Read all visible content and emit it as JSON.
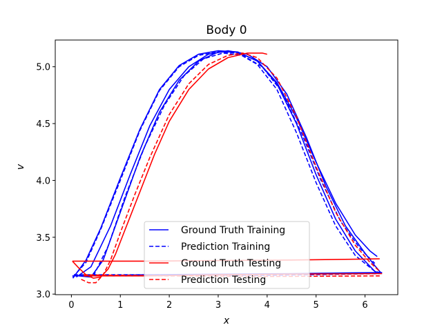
{
  "chart_data": {
    "type": "line",
    "title": "Body 0",
    "xlabel": "x",
    "ylabel": "v",
    "xlim": [
      -0.33,
      6.67
    ],
    "ylim": [
      2.995,
      5.235
    ],
    "xticks": [
      0,
      1,
      2,
      3,
      4,
      5,
      6
    ],
    "yticks": [
      3.0,
      3.5,
      4.0,
      4.5,
      5.0
    ],
    "xtick_labels": [
      "0",
      "1",
      "2",
      "3",
      "4",
      "5",
      "6"
    ],
    "ytick_labels": [
      "3.0",
      "3.5",
      "4.0",
      "4.5",
      "5.0"
    ],
    "grid": false,
    "legend_position": "lower-center",
    "series": [
      {
        "name": "Ground Truth Training",
        "color": "#0000ff",
        "dash": "solid",
        "segments": [
          [
            [
              0.03,
              3.14
            ],
            [
              0.3,
              3.3
            ],
            [
              0.6,
              3.58
            ],
            [
              1.0,
              4.02
            ],
            [
              1.4,
              4.45
            ],
            [
              1.8,
              4.8
            ],
            [
              2.2,
              5.01
            ],
            [
              2.6,
              5.11
            ],
            [
              3.0,
              5.14
            ],
            [
              3.4,
              5.13
            ],
            [
              3.8,
              5.05
            ],
            [
              4.2,
              4.85
            ],
            [
              4.6,
              4.5
            ],
            [
              5.0,
              4.05
            ],
            [
              5.4,
              3.66
            ],
            [
              5.8,
              3.38
            ],
            [
              6.2,
              3.2
            ],
            [
              6.3,
              3.18
            ]
          ],
          [
            [
              0.1,
              3.15
            ],
            [
              0.4,
              3.24
            ],
            [
              0.8,
              3.6
            ],
            [
              1.2,
              4.05
            ],
            [
              1.6,
              4.48
            ],
            [
              2.0,
              4.8
            ],
            [
              2.4,
              5.0
            ],
            [
              2.8,
              5.11
            ],
            [
              3.2,
              5.14
            ],
            [
              3.6,
              5.11
            ],
            [
              4.0,
              5.0
            ],
            [
              4.4,
              4.76
            ],
            [
              4.8,
              4.38
            ],
            [
              5.2,
              3.95
            ],
            [
              5.6,
              3.6
            ],
            [
              6.0,
              3.36
            ],
            [
              6.2,
              3.25
            ],
            [
              6.32,
              3.19
            ]
          ],
          [
            [
              0.15,
              3.16
            ],
            [
              0.4,
              3.15
            ],
            [
              0.65,
              3.3
            ],
            [
              1.0,
              3.72
            ],
            [
              1.4,
              4.2
            ],
            [
              1.8,
              4.6
            ],
            [
              2.2,
              4.88
            ],
            [
              2.6,
              5.05
            ],
            [
              3.0,
              5.13
            ],
            [
              3.4,
              5.13
            ],
            [
              3.8,
              5.05
            ],
            [
              4.2,
              4.86
            ],
            [
              4.6,
              4.55
            ],
            [
              5.0,
              4.16
            ],
            [
              5.4,
              3.8
            ],
            [
              5.8,
              3.52
            ],
            [
              6.1,
              3.38
            ],
            [
              6.25,
              3.33
            ]
          ],
          [
            [
              0.02,
              3.16
            ],
            [
              1.5,
              3.17
            ],
            [
              3.0,
              3.175
            ],
            [
              4.5,
              3.18
            ],
            [
              6.35,
              3.19
            ]
          ]
        ]
      },
      {
        "name": "Prediction Training",
        "color": "#0000ff",
        "dash": "dashed",
        "segments": [
          [
            [
              0.03,
              3.15
            ],
            [
              0.3,
              3.28
            ],
            [
              0.6,
              3.57
            ],
            [
              1.0,
              4.0
            ],
            [
              1.4,
              4.44
            ],
            [
              1.8,
              4.79
            ],
            [
              2.2,
              5.0
            ],
            [
              2.6,
              5.1
            ],
            [
              3.0,
              5.13
            ],
            [
              3.4,
              5.12
            ],
            [
              3.8,
              5.02
            ],
            [
              4.2,
              4.8
            ],
            [
              4.6,
              4.42
            ],
            [
              5.0,
              3.98
            ],
            [
              5.4,
              3.6
            ],
            [
              5.8,
              3.34
            ],
            [
              6.2,
              3.2
            ],
            [
              6.3,
              3.19
            ]
          ],
          [
            [
              0.2,
              3.17
            ],
            [
              0.45,
              3.16
            ],
            [
              0.75,
              3.42
            ],
            [
              1.1,
              3.86
            ],
            [
              1.5,
              4.3
            ],
            [
              1.9,
              4.66
            ],
            [
              2.3,
              4.92
            ],
            [
              2.7,
              5.07
            ],
            [
              3.1,
              5.12
            ],
            [
              3.5,
              5.1
            ],
            [
              3.9,
              5.0
            ],
            [
              4.3,
              4.78
            ],
            [
              4.7,
              4.42
            ],
            [
              5.1,
              4.0
            ],
            [
              5.5,
              3.64
            ],
            [
              5.9,
              3.4
            ],
            [
              6.2,
              3.27
            ]
          ],
          [
            [
              0.05,
              3.17
            ],
            [
              2.0,
              3.17
            ],
            [
              4.0,
              3.165
            ],
            [
              6.3,
              3.18
            ]
          ]
        ]
      },
      {
        "name": "Ground Truth Testing",
        "color": "#ff0000",
        "dash": "solid",
        "segments": [
          [
            [
              0.02,
              3.29
            ],
            [
              1.5,
              3.29
            ],
            [
              3.0,
              3.295
            ],
            [
              4.5,
              3.3
            ],
            [
              6.3,
              3.31
            ]
          ],
          [
            [
              0.02,
              3.29
            ],
            [
              0.15,
              3.23
            ],
            [
              0.3,
              3.17
            ],
            [
              0.45,
              3.14
            ],
            [
              0.6,
              3.15
            ],
            [
              0.75,
              3.22
            ],
            [
              0.9,
              3.35
            ],
            [
              1.1,
              3.57
            ],
            [
              1.4,
              3.9
            ],
            [
              1.7,
              4.23
            ],
            [
              2.0,
              4.52
            ],
            [
              2.4,
              4.8
            ],
            [
              2.8,
              4.98
            ],
            [
              3.2,
              5.08
            ],
            [
              3.6,
              5.12
            ],
            [
              3.9,
              5.12
            ],
            [
              4.0,
              5.11
            ]
          ],
          [
            [
              0.25,
              3.16
            ],
            [
              1.5,
              3.16
            ],
            [
              3.0,
              3.17
            ],
            [
              4.5,
              3.175
            ],
            [
              6.35,
              3.18
            ]
          ]
        ]
      },
      {
        "name": "Prediction Testing",
        "color": "#ff0000",
        "dash": "dashed",
        "segments": [
          [
            [
              0.2,
              3.13
            ],
            [
              0.35,
              3.1
            ],
            [
              0.5,
              3.1
            ],
            [
              0.65,
              3.17
            ],
            [
              0.8,
              3.3
            ],
            [
              1.0,
              3.54
            ],
            [
              1.3,
              3.88
            ],
            [
              1.6,
              4.2
            ],
            [
              2.0,
              4.58
            ],
            [
              2.4,
              4.85
            ],
            [
              2.8,
              5.02
            ],
            [
              3.2,
              5.1
            ],
            [
              3.5,
              5.12
            ],
            [
              3.8,
              5.08
            ],
            [
              4.2,
              4.9
            ],
            [
              4.6,
              4.56
            ],
            [
              5.0,
              4.12
            ],
            [
              5.4,
              3.72
            ],
            [
              5.8,
              3.43
            ],
            [
              6.1,
              3.28
            ],
            [
              6.3,
              3.2
            ]
          ],
          [
            [
              0.25,
              3.17
            ],
            [
              2.0,
              3.16
            ],
            [
              4.0,
              3.155
            ],
            [
              6.3,
              3.16
            ]
          ]
        ]
      }
    ]
  }
}
